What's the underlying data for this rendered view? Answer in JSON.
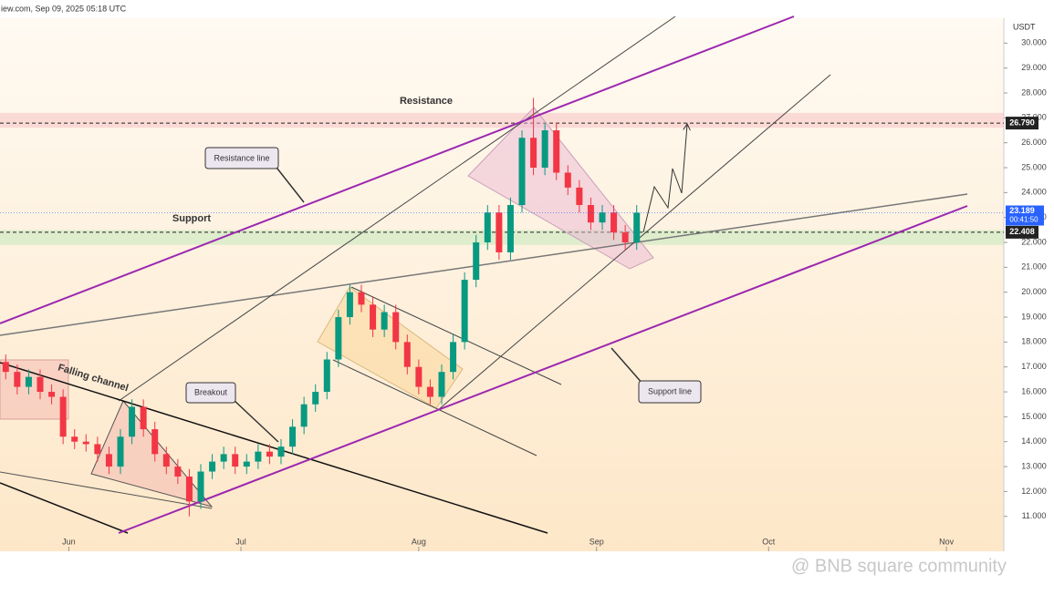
{
  "header": "iew.com, Sep 09, 2025 05:18 UTC",
  "watermark": "@ BNB square community",
  "chart_data": {
    "type": "candlestick",
    "currency": "USDT",
    "x": [
      1,
      3,
      5,
      7,
      9,
      11,
      13,
      15,
      17,
      19,
      21,
      23,
      25,
      27,
      29,
      31,
      33,
      35,
      37,
      39,
      41,
      43,
      45,
      47,
      49,
      51,
      53,
      55,
      57,
      59,
      61,
      63,
      65,
      67,
      69,
      71,
      73,
      75,
      77,
      79,
      81,
      83,
      85,
      87,
      89,
      91,
      93,
      95,
      97,
      99,
      101,
      103,
      105,
      107,
      109,
      111
    ],
    "open": [
      17.2,
      16.8,
      16.2,
      16.6,
      16.0,
      15.8,
      14.2,
      14.0,
      13.9,
      13.5,
      13.0,
      14.2,
      15.4,
      14.5,
      13.5,
      13.0,
      12.6,
      11.6,
      12.8,
      13.2,
      13.5,
      13.0,
      13.2,
      13.6,
      13.4,
      13.8,
      14.6,
      15.5,
      16.0,
      17.3,
      19.0,
      20.0,
      19.5,
      18.5,
      19.2,
      18.0,
      17.0,
      16.2,
      15.8,
      16.8,
      18.0,
      20.5,
      22.0,
      23.2,
      21.6,
      23.5,
      26.2,
      25.0,
      26.5,
      24.8,
      24.2,
      23.5,
      22.8,
      23.2,
      22.4,
      22.0
    ],
    "high": [
      17.5,
      17.1,
      16.9,
      16.9,
      16.3,
      16.1,
      14.5,
      14.3,
      14.2,
      13.8,
      14.5,
      15.7,
      15.7,
      14.8,
      13.8,
      13.3,
      12.9,
      13.1,
      13.5,
      13.8,
      13.8,
      13.5,
      13.9,
      13.9,
      14.1,
      14.9,
      15.8,
      16.3,
      17.6,
      19.3,
      20.3,
      20.3,
      19.8,
      19.5,
      19.5,
      18.3,
      17.3,
      16.5,
      17.1,
      18.3,
      20.8,
      22.3,
      23.5,
      23.5,
      23.8,
      26.5,
      27.8,
      26.8,
      26.8,
      25.1,
      24.5,
      23.8,
      23.5,
      23.5,
      22.7,
      23.5
    ],
    "low": [
      16.5,
      15.9,
      15.9,
      15.7,
      15.5,
      13.9,
      13.7,
      13.6,
      13.2,
      12.7,
      12.7,
      13.9,
      14.2,
      13.2,
      12.7,
      12.3,
      11.0,
      11.3,
      12.5,
      12.9,
      12.7,
      12.7,
      12.9,
      13.1,
      13.1,
      13.5,
      14.3,
      15.2,
      15.7,
      17.0,
      18.7,
      19.2,
      18.2,
      18.2,
      17.7,
      16.7,
      15.9,
      15.5,
      15.5,
      16.5,
      17.7,
      20.2,
      21.7,
      21.3,
      21.3,
      23.2,
      24.7,
      24.7,
      24.5,
      23.9,
      23.2,
      22.5,
      22.5,
      22.1,
      21.7,
      21.7
    ],
    "close": [
      16.8,
      16.2,
      16.6,
      16.0,
      15.8,
      14.2,
      14.0,
      13.9,
      13.5,
      13.0,
      14.2,
      15.4,
      14.5,
      13.5,
      13.0,
      12.6,
      11.6,
      12.8,
      13.2,
      13.5,
      13.0,
      13.2,
      13.6,
      13.4,
      13.8,
      14.6,
      15.5,
      16.0,
      17.3,
      19.0,
      20.0,
      19.5,
      18.5,
      19.2,
      18.0,
      17.0,
      16.2,
      15.8,
      16.8,
      18.0,
      20.5,
      22.0,
      23.2,
      21.6,
      23.5,
      26.2,
      25.0,
      26.5,
      24.8,
      24.2,
      23.5,
      22.8,
      23.2,
      22.4,
      22.0,
      23.19
    ],
    "up_color": "#089981",
    "down_color": "#f23645",
    "xlim": [
      0,
      175
    ],
    "xticks": [
      {
        "value": 12,
        "label": "Jun"
      },
      {
        "value": 42,
        "label": "Jul"
      },
      {
        "value": 73,
        "label": "Aug"
      },
      {
        "value": 104,
        "label": "Sep"
      },
      {
        "value": 134,
        "label": "Oct"
      },
      {
        "value": 165,
        "label": "Nov"
      }
    ],
    "ylim": [
      9.6,
      31.0
    ],
    "yticks": [
      {
        "value": 11,
        "label": "11.000"
      },
      {
        "value": 12,
        "label": "12.000"
      },
      {
        "value": 13,
        "label": "13.000"
      },
      {
        "value": 14,
        "label": "14.000"
      },
      {
        "value": 15,
        "label": "15.000"
      },
      {
        "value": 16,
        "label": "16.000"
      },
      {
        "value": 17,
        "label": "17.000"
      },
      {
        "value": 18,
        "label": "18.000"
      },
      {
        "value": 19,
        "label": "19.000"
      },
      {
        "value": 20,
        "label": "20.000"
      },
      {
        "value": 21,
        "label": "21.000"
      },
      {
        "value": 22,
        "label": "22.000"
      },
      {
        "value": 23,
        "label": "23.000"
      },
      {
        "value": 24,
        "label": "24.000"
      },
      {
        "value": 25,
        "label": "25.000"
      },
      {
        "value": 26,
        "label": "26.000"
      },
      {
        "value": 27,
        "label": "27.000"
      },
      {
        "value": 28,
        "label": "28.000"
      },
      {
        "value": 29,
        "label": "29.000"
      },
      {
        "value": 30,
        "label": "30.000"
      }
    ],
    "resistance_zone": [
      26.6,
      27.2
    ],
    "support_zone": [
      21.9,
      22.5
    ],
    "resistance_level": {
      "value": 26.79,
      "label": "26.790"
    },
    "support_level": {
      "value": 22.408,
      "label": "22.408"
    },
    "last_price": {
      "value": 23.189,
      "label": "23.189"
    },
    "countdown": "00:41:50",
    "annotations": {
      "resistance": "Resistance",
      "support": "Support",
      "resistance_line": "Resistance line",
      "falling_channel": "Falling channel",
      "breakout": "Breakout",
      "support_line": "Support line"
    }
  }
}
